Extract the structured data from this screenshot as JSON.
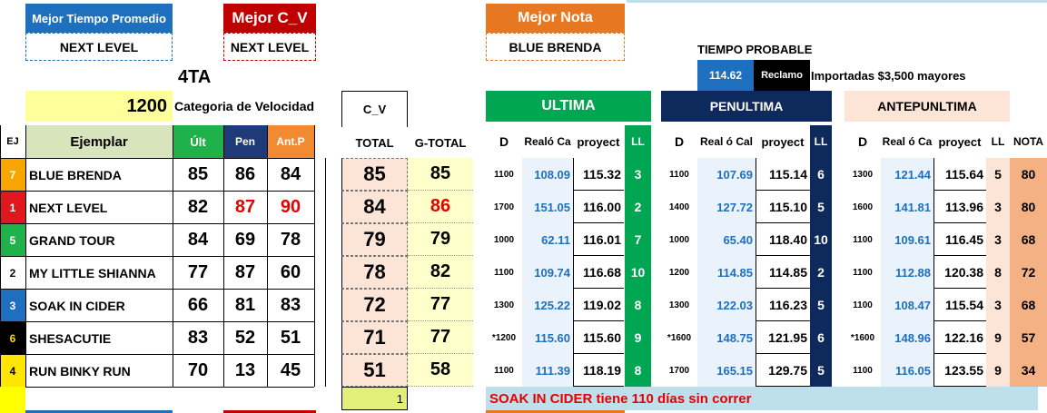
{
  "top": {
    "mejor_tiempo_label": "Mejor Tiempo Promedio",
    "mejor_tiempo_value": "NEXT LEVEL",
    "mejor_cv_label": "Mejor C_V",
    "mejor_cv_value": "NEXT LEVEL",
    "mejor_nota_label": "Mejor Nota",
    "mejor_nota_value": "BLUE BRENDA",
    "tiempo_probable_label": "TIEMPO PROBABLE",
    "tiempo_probable_value": "114.62",
    "reclamo_label": "Reclamo",
    "reclamo_text": "Importadas $3,500 mayores",
    "race_number": "4TA",
    "distance": "1200",
    "categoria_label": "Categoria de Velocidad"
  },
  "headers": {
    "ej": "EJ",
    "ejemplar": "Ejemplar",
    "ult": "Últ",
    "pen": "Pen",
    "antp": "Ant.P",
    "cv": "C_V",
    "total": "TOTAL",
    "gtotal": "G-TOTAL",
    "ultima": "ULTIMA",
    "penultima": "PENULTIMA",
    "antepenultima": "ANTEPUNLTIMA",
    "d": "D",
    "real_ult": "Realó Ca",
    "real_pen": "Real ó Cal",
    "real_ant": "Real ó Ca",
    "proyect": "proyect",
    "ll": "LL",
    "nota": "NOTA"
  },
  "colors": {
    "ult": "#1FB24A",
    "pen": "#1F3A78",
    "antp": "#F28A32",
    "ultima": "#00A651",
    "penultima": "#0E2A5C",
    "antepenultima": "#FCE4D6",
    "cell_total": "#FCE4D6",
    "cell_gtotal": "#FFFFCC",
    "nota": "#F4B183",
    "real_bg": "#EAF3FB",
    "red": "#E60000"
  },
  "rows": [
    {
      "ej": "7",
      "ej_color": "#F7A600",
      "ej_text": "#fff",
      "name": "BLUE BRENDA",
      "ult": "85",
      "pen": "86",
      "antp": "84",
      "pen_red": false,
      "antp_red": false,
      "total": "85",
      "gtotal": "85",
      "gtotal_red": false,
      "u_d": "1100",
      "u_real": "108.09",
      "u_proj": "115.32",
      "u_ll": "3",
      "p_d": "1100",
      "p_real": "107.69",
      "p_proj": "115.14",
      "p_ll": "6",
      "a_d": "1300",
      "a_real": "121.44",
      "a_proj": "115.64",
      "a_ll": "5",
      "nota": "80"
    },
    {
      "ej": "1",
      "ej_color": "#E0181E",
      "ej_text": "#fff",
      "name": "NEXT LEVEL",
      "ult": "82",
      "pen": "87",
      "antp": "90",
      "pen_red": true,
      "antp_red": true,
      "total": "84",
      "gtotal": "86",
      "gtotal_red": true,
      "u_d": "1700",
      "u_real": "151.05",
      "u_proj": "116.00",
      "u_ll": "2",
      "p_d": "1400",
      "p_real": "127.72",
      "p_proj": "115.10",
      "p_ll": "5",
      "a_d": "1600",
      "a_real": "141.81",
      "a_proj": "113.96",
      "a_ll": "3",
      "nota": "80"
    },
    {
      "ej": "5",
      "ej_color": "#1FB24A",
      "ej_text": "#fff",
      "name": "GRAND TOUR",
      "ult": "84",
      "pen": "69",
      "antp": "78",
      "pen_red": false,
      "antp_red": false,
      "total": "79",
      "gtotal": "79",
      "gtotal_red": false,
      "u_d": "1000",
      "u_real": "62.11",
      "u_proj": "116.01",
      "u_ll": "7",
      "p_d": "1000",
      "p_real": "65.40",
      "p_proj": "118.40",
      "p_ll": "10",
      "a_d": "1100",
      "a_real": "109.61",
      "a_proj": "116.45",
      "a_ll": "3",
      "nota": "68"
    },
    {
      "ej": "2",
      "ej_color": "#FFFFFF",
      "ej_text": "#000",
      "name": "MY LITTLE SHIANNA",
      "ult": "77",
      "pen": "87",
      "antp": "60",
      "pen_red": false,
      "antp_red": false,
      "total": "78",
      "gtotal": "82",
      "gtotal_red": false,
      "u_d": "1100",
      "u_real": "109.74",
      "u_proj": "116.68",
      "u_ll": "10",
      "p_d": "1200",
      "p_real": "114.85",
      "p_proj": "114.85",
      "p_ll": "2",
      "a_d": "1100",
      "a_real": "112.88",
      "a_proj": "120.38",
      "a_ll": "8",
      "nota": "72"
    },
    {
      "ej": "3",
      "ej_color": "#1F6FBF",
      "ej_text": "#fff",
      "name": "SOAK IN CIDER",
      "ult": "66",
      "pen": "81",
      "antp": "83",
      "pen_red": false,
      "antp_red": false,
      "total": "72",
      "gtotal": "77",
      "gtotal_red": false,
      "u_d": "1300",
      "u_real": "125.22",
      "u_proj": "119.02",
      "u_ll": "8",
      "p_d": "1300",
      "p_real": "122.03",
      "p_proj": "116.23",
      "p_ll": "5",
      "a_d": "1100",
      "a_real": "108.47",
      "a_proj": "115.54",
      "a_ll": "3",
      "nota": "68"
    },
    {
      "ej": "6",
      "ej_color": "#000000",
      "ej_text": "#FFD800",
      "name": "SHESACUTIE",
      "ult": "83",
      "pen": "52",
      "antp": "51",
      "pen_red": false,
      "antp_red": false,
      "total": "71",
      "gtotal": "77",
      "gtotal_red": false,
      "u_d": "*1200",
      "u_real": "115.60",
      "u_proj": "115.60",
      "u_ll": "9",
      "p_d": "*1600",
      "p_real": "148.75",
      "p_proj": "121.95",
      "p_ll": "6",
      "a_d": "*1600",
      "a_real": "148.96",
      "a_proj": "122.16",
      "a_ll": "9",
      "nota": "57"
    },
    {
      "ej": "4",
      "ej_color": "#FFE600",
      "ej_text": "#000",
      "name": "RUN BINKY RUN",
      "ult": "70",
      "pen": "13",
      "antp": "45",
      "pen_red": false,
      "antp_red": false,
      "total": "51",
      "gtotal": "58",
      "gtotal_red": false,
      "u_d": "1100",
      "u_real": "111.39",
      "u_proj": "118.19",
      "u_ll": "8",
      "p_d": "1700",
      "p_real": "165.15",
      "p_proj": "129.75",
      "p_ll": "5",
      "a_d": "1100",
      "a_real": "116.05",
      "a_proj": "123.55",
      "a_ll": "9",
      "nota": "34"
    }
  ],
  "footer": {
    "cv_count": "1",
    "message": "SOAK IN CIDER tiene 110 días sin correr"
  }
}
